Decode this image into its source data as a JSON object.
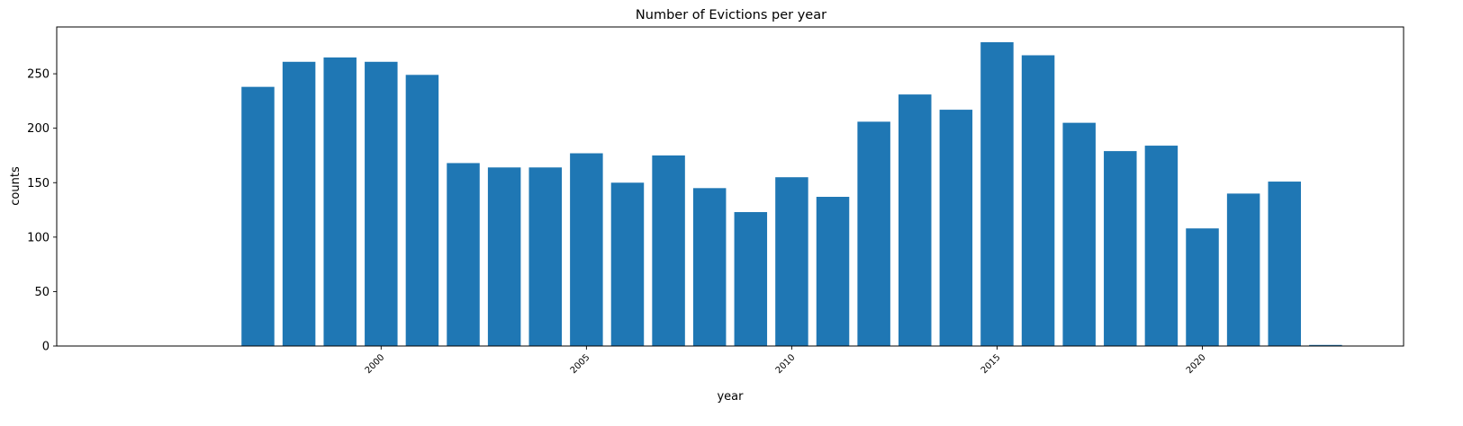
{
  "chart_data": {
    "type": "bar",
    "title": "Number of Evictions per year",
    "xlabel": "year",
    "ylabel": "counts",
    "x": [
      1997,
      1998,
      1999,
      2000,
      2001,
      2002,
      2003,
      2004,
      2005,
      2006,
      2007,
      2008,
      2009,
      2010,
      2011,
      2012,
      2013,
      2014,
      2015,
      2016,
      2017,
      2018,
      2019,
      2020,
      2021,
      2022,
      2023
    ],
    "values": [
      238,
      261,
      265,
      261,
      249,
      168,
      164,
      164,
      177,
      150,
      175,
      145,
      123,
      155,
      137,
      206,
      231,
      217,
      279,
      267,
      205,
      179,
      184,
      108,
      140,
      151,
      1
    ],
    "xlim": [
      1992.1,
      2024.9
    ],
    "ylim": [
      0,
      293
    ],
    "xticks": [
      2000,
      2005,
      2010,
      2015,
      2020
    ],
    "yticks": [
      0,
      50,
      100,
      150,
      200,
      250
    ],
    "grid": false,
    "legend": "none",
    "bar_color": "#1f77b4"
  }
}
